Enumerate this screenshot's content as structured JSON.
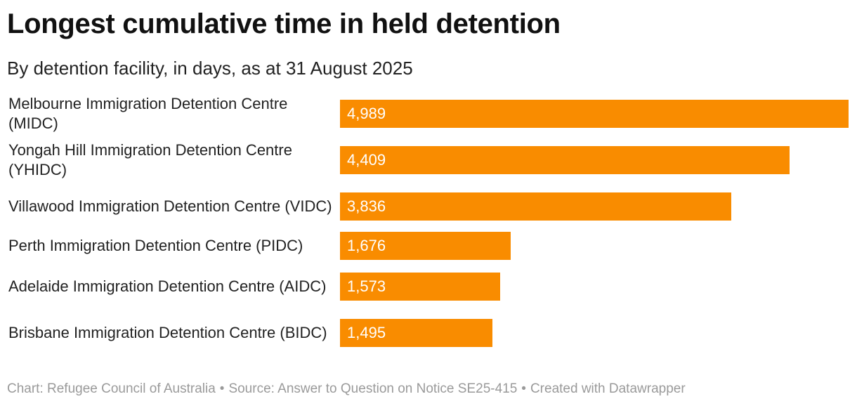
{
  "header": {
    "title": "Longest cumulative time in held detention",
    "subtitle": "By detention facility, in days, as at 31 August 2025"
  },
  "footer": {
    "chart_credit": "Chart: Refugee Council of Australia",
    "source": "Source: Answer to Question on Notice SE25-415",
    "tool": "Created with Datawrapper",
    "separator": "•"
  },
  "colors": {
    "bar": "#f98c00",
    "bar_value_text": "#ffffff"
  },
  "chart_data": {
    "type": "bar",
    "orientation": "horizontal",
    "title": "Longest cumulative time in held detention",
    "subtitle": "By detention facility, in days, as at 31 August 2025",
    "categories": [
      "Melbourne Immigration Detention Centre (MIDC)",
      "Yongah Hill Immigration Detention Centre (YHIDC)",
      "Villawood Immigration Detention Centre (VIDC)",
      "Perth Immigration Detention Centre (PIDC)",
      "Adelaide Immigration Detention Centre (AIDC)",
      "Brisbane Immigration Detention Centre (BIDC)"
    ],
    "values": [
      4989,
      4409,
      3836,
      1676,
      1573,
      1495
    ],
    "value_labels": [
      "4,989",
      "4,409",
      "3,836",
      "1,676",
      "1,573",
      "1,495"
    ],
    "xlim": [
      0,
      4989
    ],
    "grid": false,
    "legend": "none"
  }
}
